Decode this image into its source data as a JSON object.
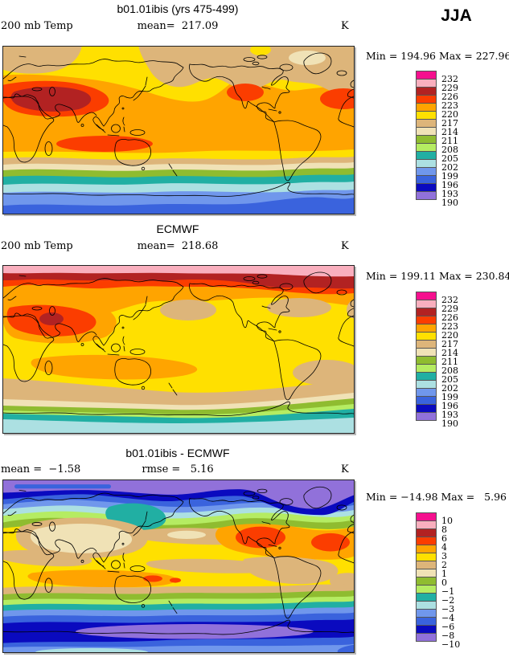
{
  "header": {
    "season": "JJA"
  },
  "panels": [
    {
      "title": "b01.01ibis (yrs 475-499)",
      "left_text": "200 mb Temp",
      "center_text": "mean=  217.09",
      "unit": "K",
      "minmax": "Min = 194.96 Max = 227.96",
      "legend_labels": [
        "232",
        "229",
        "226",
        "223",
        "220",
        "217",
        "214",
        "211",
        "208",
        "205",
        "202",
        "199",
        "196",
        "193",
        "190"
      ]
    },
    {
      "title": "ECMWF",
      "left_text": "200 mb Temp",
      "center_text": "mean=  218.68",
      "unit": "K",
      "minmax": "Min = 199.11 Max = 230.84",
      "legend_labels": [
        "232",
        "229",
        "226",
        "223",
        "220",
        "217",
        "214",
        "211",
        "208",
        "205",
        "202",
        "199",
        "196",
        "193",
        "190"
      ]
    },
    {
      "title": "b01.01ibis - ECMWF",
      "left_text": "mean =  −1.58",
      "center_text": "rmse =   5.16",
      "unit": "K",
      "minmax": "Min = −14.98 Max =   5.96",
      "legend_labels": [
        "10",
        "8",
        "6",
        "4",
        "3",
        "2",
        "1",
        "0",
        "−1",
        "−2",
        "−3",
        "−4",
        "−6",
        "−8",
        "−10"
      ]
    }
  ],
  "palette_high_to_low": [
    "#F5108E",
    "#F9AFBE",
    "#B22222",
    "#FB3D00",
    "#FFA400",
    "#FFE000",
    "#DDB57A",
    "#F0E2B6",
    "#8FBC30",
    "#B5EC62",
    "#21AFA3",
    "#ACE0E2",
    "#7097EC",
    "#3A63DD",
    "#0A0ABF",
    "#9171DA"
  ],
  "chart_data": [
    {
      "type": "heatmap",
      "subtype": "filled-contour-world-map",
      "title": "b01.01ibis (yrs 475-499)",
      "variable": "200 mb Temp",
      "season": "JJA",
      "units": "K",
      "mean": 217.09,
      "min": 194.96,
      "max": 227.96,
      "contour_levels": [
        190,
        193,
        196,
        199,
        202,
        205,
        208,
        211,
        214,
        217,
        220,
        223,
        226,
        229,
        232
      ],
      "legend_position": "right",
      "notes": "global cylindrical map 0-360E, 90S-90N; warm colors high temps over subtropics, cool colors over Antarctic"
    },
    {
      "type": "heatmap",
      "subtype": "filled-contour-world-map",
      "title": "ECMWF",
      "variable": "200 mb Temp",
      "season": "JJA",
      "units": "K",
      "mean": 218.68,
      "min": 199.11,
      "max": 230.84,
      "contour_levels": [
        190,
        193,
        196,
        199,
        202,
        205,
        208,
        211,
        214,
        217,
        220,
        223,
        226,
        229,
        232
      ],
      "legend_position": "right",
      "notes": "pink/dark-red band across Arctic; broad yellow tropics; teal/cyan Antarctic bands"
    },
    {
      "type": "heatmap",
      "subtype": "filled-contour-world-map-difference",
      "title": "b01.01ibis - ECMWF",
      "season": "JJA",
      "units": "K",
      "mean": -1.58,
      "rmse": 5.16,
      "min": -14.98,
      "max": 5.96,
      "contour_levels": [
        -10,
        -8,
        -6,
        -4,
        -3,
        -2,
        -1,
        0,
        1,
        2,
        3,
        4,
        6,
        8,
        10
      ],
      "legend_position": "right",
      "notes": "purple/blue negative bias at poles, yellow/orange positive bias in tropics and N Atlantic"
    }
  ]
}
